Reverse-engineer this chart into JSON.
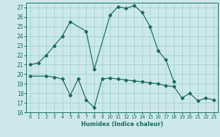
{
  "xlabel": "Humidex (Indice chaleur)",
  "bg_color": "#cce8e8",
  "grid_color": "#a8d4d4",
  "line_color": "#1a6a60",
  "xlim": [
    -0.5,
    23.5
  ],
  "ylim": [
    16,
    27.5
  ],
  "yticks": [
    16,
    17,
    18,
    19,
    20,
    21,
    22,
    23,
    24,
    25,
    26,
    27
  ],
  "xticks": [
    0,
    1,
    2,
    3,
    4,
    5,
    6,
    7,
    8,
    9,
    10,
    11,
    12,
    13,
    14,
    15,
    16,
    17,
    18,
    19,
    20,
    21,
    22,
    23
  ],
  "curve1_x": [
    0,
    1,
    2,
    3,
    4,
    5,
    7,
    8,
    10,
    11,
    12,
    13,
    14,
    15,
    16,
    17,
    18
  ],
  "curve1_y": [
    21.0,
    21.2,
    22.0,
    23.0,
    24.0,
    25.5,
    24.5,
    20.5,
    26.2,
    27.1,
    26.9,
    27.2,
    26.5,
    25.0,
    22.5,
    21.5,
    19.2
  ],
  "curve2_x": [
    0,
    2,
    3,
    4,
    5,
    6,
    7,
    8,
    9,
    10,
    11,
    12,
    13,
    14,
    15,
    16,
    17,
    18,
    19,
    20,
    21,
    22,
    23
  ],
  "curve2_y": [
    19.8,
    19.8,
    19.7,
    19.5,
    17.8,
    19.5,
    17.3,
    16.5,
    19.5,
    19.6,
    19.5,
    19.4,
    19.3,
    19.2,
    19.1,
    19.0,
    18.8,
    18.7,
    17.5,
    18.0,
    17.2,
    17.5,
    17.3
  ]
}
